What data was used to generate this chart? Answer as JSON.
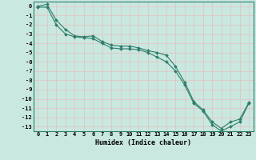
{
  "xlabel": "Humidex (Indice chaleur)",
  "x_values": [
    0,
    1,
    2,
    3,
    4,
    5,
    6,
    7,
    8,
    9,
    10,
    11,
    12,
    13,
    14,
    15,
    16,
    17,
    18,
    19,
    20,
    21,
    22,
    23
  ],
  "line1_y": [
    0.0,
    0.2,
    -1.5,
    -2.5,
    -3.2,
    -3.3,
    -3.2,
    -3.8,
    -4.2,
    -4.3,
    -4.3,
    -4.5,
    -4.8,
    -5.0,
    -5.3,
    -6.5,
    -8.2,
    -10.3,
    -11.2,
    -12.5,
    -13.2,
    -12.5,
    -12.2,
    -10.4
  ],
  "line2_y": [
    -0.1,
    -0.1,
    -2.0,
    -3.0,
    -3.3,
    -3.4,
    -3.5,
    -4.0,
    -4.5,
    -4.6,
    -4.6,
    -4.7,
    -5.0,
    -5.5,
    -6.0,
    -7.0,
    -8.5,
    -10.5,
    -11.3,
    -12.8,
    -13.5,
    -13.0,
    -12.5,
    -10.5
  ],
  "line_color": "#2e7d6b",
  "bg_color": "#c8e8e0",
  "grid_color": "#e8c0c0",
  "spine_color": "#2e7d6b",
  "xlim": [
    -0.5,
    23.5
  ],
  "ylim": [
    -13.5,
    0.5
  ],
  "yticks": [
    0,
    -1,
    -2,
    -3,
    -4,
    -5,
    -6,
    -7,
    -8,
    -9,
    -10,
    -11,
    -12,
    -13
  ],
  "xticks": [
    0,
    1,
    2,
    3,
    4,
    5,
    6,
    7,
    8,
    9,
    10,
    11,
    12,
    13,
    14,
    15,
    16,
    17,
    18,
    19,
    20,
    21,
    22,
    23
  ],
  "marker": "D",
  "markersize": 2.0,
  "linewidth": 0.8,
  "tick_fontsize": 5.0,
  "xlabel_fontsize": 6.0
}
